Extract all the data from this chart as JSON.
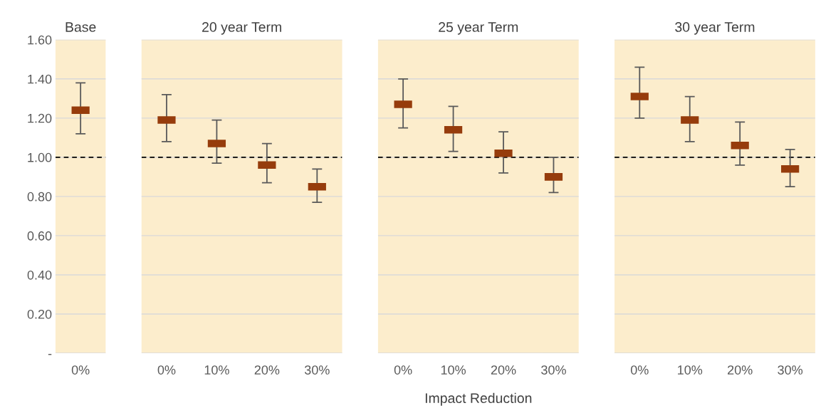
{
  "chart_data": [
    {
      "type": "scatter",
      "title": "Base",
      "categories": [
        "0%"
      ],
      "values": [
        1.24
      ],
      "errors": [
        [
          1.12,
          1.38
        ]
      ],
      "color": "#963c0c",
      "marker": "square",
      "ylim": [
        0,
        1.6
      ],
      "yticks": [
        {
          "value": 0,
          "label": "-"
        },
        {
          "value": 0.2,
          "label": "0.20"
        },
        {
          "value": 0.4,
          "label": "0.40"
        },
        {
          "value": 0.6,
          "label": "0.60"
        },
        {
          "value": 0.8,
          "label": "0.80"
        },
        {
          "value": 1.0,
          "label": "1.00"
        },
        {
          "value": 1.2,
          "label": "1.20"
        },
        {
          "value": 1.4,
          "label": "1.40"
        },
        {
          "value": 1.6,
          "label": "1.60"
        }
      ],
      "grid": "y",
      "ref_lines": [
        {
          "axis": "y",
          "value": 1.0,
          "line_style": "dashed"
        }
      ]
    },
    {
      "type": "scatter",
      "title": "20 year Term",
      "categories": [
        "0%",
        "10%",
        "20%",
        "30%"
      ],
      "values": [
        1.19,
        1.07,
        0.96,
        0.85
      ],
      "errors": [
        [
          1.08,
          1.32
        ],
        [
          0.97,
          1.19
        ],
        [
          0.87,
          1.07
        ],
        [
          0.77,
          0.94
        ]
      ],
      "color": "#963c0c",
      "marker": "square",
      "ylim": [
        0,
        1.6
      ],
      "grid": "y",
      "tick_labels": "x",
      "ref_lines": [
        {
          "axis": "y",
          "value": 1.0,
          "line_style": "dashed"
        }
      ]
    },
    {
      "type": "scatter",
      "title": "25 year Term",
      "xlabel": "Impact Reduction",
      "categories": [
        "0%",
        "10%",
        "20%",
        "30%"
      ],
      "values": [
        1.27,
        1.14,
        1.02,
        0.9
      ],
      "errors": [
        [
          1.15,
          1.4
        ],
        [
          1.03,
          1.26
        ],
        [
          0.92,
          1.13
        ],
        [
          0.82,
          1.0
        ]
      ],
      "color": "#963c0c",
      "marker": "square",
      "ylim": [
        0,
        1.6
      ],
      "grid": "y",
      "tick_labels": "x",
      "ref_lines": [
        {
          "axis": "y",
          "value": 1.0,
          "line_style": "dashed"
        }
      ]
    },
    {
      "type": "scatter",
      "title": "30 year Term",
      "categories": [
        "0%",
        "10%",
        "20%",
        "30%"
      ],
      "values": [
        1.31,
        1.19,
        1.06,
        0.94
      ],
      "errors": [
        [
          1.2,
          1.46
        ],
        [
          1.08,
          1.31
        ],
        [
          0.96,
          1.18
        ],
        [
          0.85,
          1.04
        ]
      ],
      "color": "#963c0c",
      "marker": "square",
      "ylim": [
        0,
        1.6
      ],
      "grid": "y",
      "tick_labels": "x",
      "ref_lines": [
        {
          "axis": "y",
          "value": 1.0,
          "line_style": "dashed"
        }
      ]
    }
  ]
}
